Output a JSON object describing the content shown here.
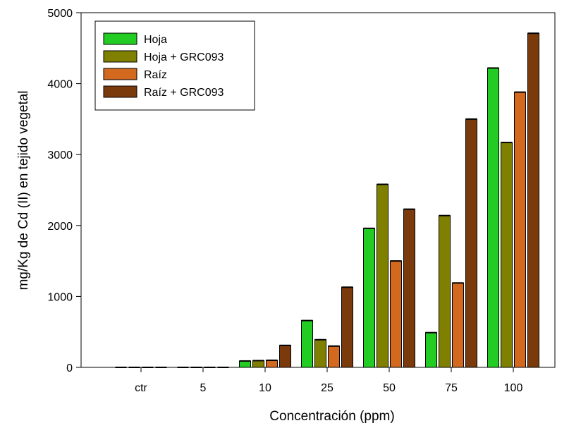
{
  "chart_data": {
    "type": "bar",
    "title": "",
    "xlabel": "Concentración (ppm)",
    "ylabel": "mg/Kg de Cd (II) en tejido vegetal",
    "categories": [
      "ctr",
      "5",
      "10",
      "25",
      "50",
      "75",
      "100"
    ],
    "ylim": [
      0,
      5000
    ],
    "yticks": [
      0,
      1000,
      2000,
      3000,
      4000,
      5000
    ],
    "grid": false,
    "legend_position": "top-left",
    "series": [
      {
        "name": "Hoja",
        "color": "#22cc22",
        "values": [
          0,
          0,
          90,
          660,
          1960,
          490,
          4220
        ]
      },
      {
        "name": "Hoja + GRC093",
        "color": "#808000",
        "values": [
          0,
          0,
          95,
          390,
          2580,
          2140,
          3170
        ]
      },
      {
        "name": "Raíz",
        "color": "#d2691e",
        "values": [
          0,
          0,
          100,
          300,
          1500,
          1190,
          3880
        ]
      },
      {
        "name": "Raíz + GRC093",
        "color": "#7b3a0c",
        "values": [
          0,
          0,
          310,
          1130,
          2230,
          3500,
          4710
        ]
      }
    ]
  }
}
